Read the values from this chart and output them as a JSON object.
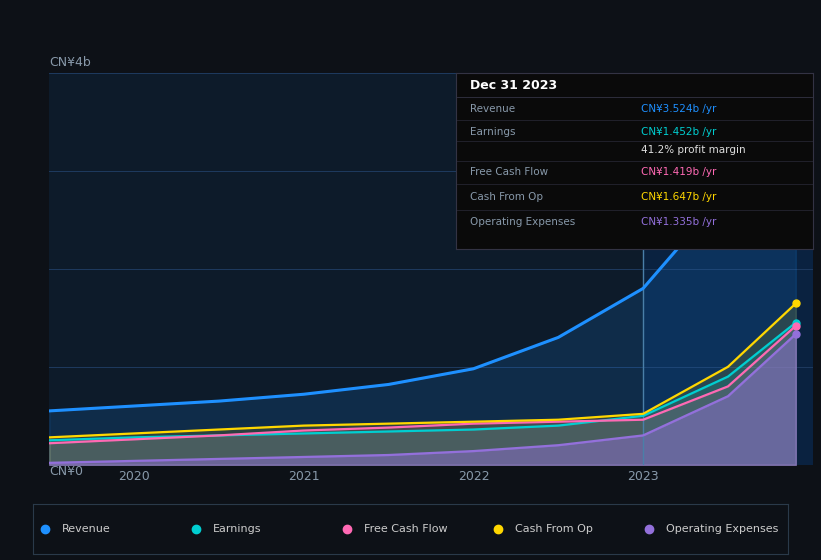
{
  "bg_color": "#0d1117",
  "chart_bg": "#0d1b2a",
  "highlight_bg": "#0a2240",
  "ylabel": "CN¥4b",
  "y0label": "CN¥0",
  "ylim": [
    0,
    4.0
  ],
  "xlim": [
    2019.5,
    2024.0
  ],
  "xticks": [
    2020,
    2021,
    2022,
    2023
  ],
  "series": {
    "Revenue": {
      "color": "#1e90ff",
      "final": 3.524
    },
    "Earnings": {
      "color": "#00ced1",
      "final": 1.452
    },
    "Free Cash Flow": {
      "color": "#ff69b4",
      "final": 1.419
    },
    "Cash From Op": {
      "color": "#ffd700",
      "final": 1.647
    },
    "Operating Expenses": {
      "color": "#9370db",
      "final": 1.335
    }
  },
  "revenue_x": [
    2019.5,
    2020.0,
    2020.5,
    2021.0,
    2021.5,
    2022.0,
    2022.5,
    2023.0,
    2023.5,
    2023.9
  ],
  "revenue_y": [
    0.55,
    0.6,
    0.65,
    0.72,
    0.82,
    0.98,
    1.3,
    1.8,
    2.8,
    3.524
  ],
  "earnings_x": [
    2019.5,
    2020.0,
    2020.5,
    2021.0,
    2021.5,
    2022.0,
    2022.5,
    2023.0,
    2023.5,
    2023.9
  ],
  "earnings_y": [
    0.25,
    0.28,
    0.3,
    0.32,
    0.34,
    0.36,
    0.4,
    0.5,
    0.9,
    1.452
  ],
  "fcf_x": [
    2019.5,
    2020.0,
    2020.5,
    2021.0,
    2021.5,
    2022.0,
    2022.5,
    2023.0,
    2023.5,
    2023.9
  ],
  "fcf_y": [
    0.22,
    0.26,
    0.3,
    0.35,
    0.38,
    0.42,
    0.44,
    0.46,
    0.8,
    1.419
  ],
  "cashfromop_x": [
    2019.5,
    2020.0,
    2020.5,
    2021.0,
    2021.5,
    2022.0,
    2022.5,
    2023.0,
    2023.5,
    2023.9
  ],
  "cashfromop_y": [
    0.28,
    0.32,
    0.36,
    0.4,
    0.42,
    0.44,
    0.46,
    0.52,
    1.0,
    1.647
  ],
  "opex_x": [
    2019.5,
    2020.0,
    2020.5,
    2021.0,
    2021.5,
    2022.0,
    2022.5,
    2023.0,
    2023.5,
    2023.9
  ],
  "opex_y": [
    0.02,
    0.04,
    0.06,
    0.08,
    0.1,
    0.14,
    0.2,
    0.3,
    0.7,
    1.335
  ],
  "tooltip_x": 2023.0,
  "tooltip_label": "Dec 31 2023",
  "tooltip_rows": [
    {
      "label": "Revenue",
      "value": "CN¥3.524b /yr",
      "color": "#1e90ff"
    },
    {
      "label": "Earnings",
      "value": "CN¥1.452b /yr",
      "color": "#00ced1"
    },
    {
      "label": "",
      "value": "41.2% profit margin",
      "color": "#dddddd"
    },
    {
      "label": "Free Cash Flow",
      "value": "CN¥1.419b /yr",
      "color": "#ff69b4"
    },
    {
      "label": "Cash From Op",
      "value": "CN¥1.647b /yr",
      "color": "#ffd700"
    },
    {
      "label": "Operating Expenses",
      "value": "CN¥1.335b /yr",
      "color": "#9370db"
    }
  ],
  "legend_items": [
    {
      "label": "Revenue",
      "color": "#1e90ff"
    },
    {
      "label": "Earnings",
      "color": "#00ced1"
    },
    {
      "label": "Free Cash Flow",
      "color": "#ff69b4"
    },
    {
      "label": "Cash From Op",
      "color": "#ffd700"
    },
    {
      "label": "Operating Expenses",
      "color": "#9370db"
    }
  ]
}
